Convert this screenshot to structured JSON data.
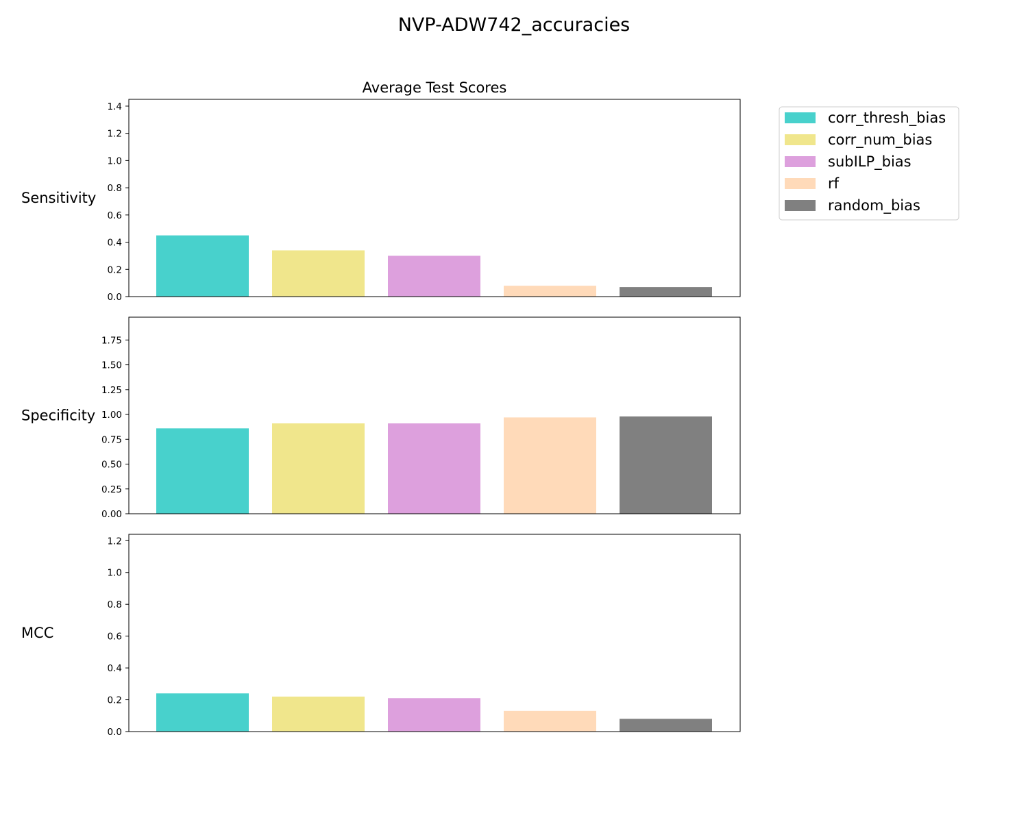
{
  "figure": {
    "title": "NVP-ADW742_accuracies",
    "subtitle": "Average Test Scores"
  },
  "legend": {
    "placement": "right-top",
    "entries": [
      {
        "label": "corr_thresh_bias",
        "color": "#48d1cc"
      },
      {
        "label": "corr_num_bias",
        "color": "#f0e68c"
      },
      {
        "label": "subILP_bias",
        "color": "#dda0dd"
      },
      {
        "label": "rf",
        "color": "#ffdab9"
      },
      {
        "label": "random_bias",
        "color": "#808080"
      }
    ]
  },
  "chart_data": [
    {
      "type": "bar",
      "title": "Average Test Scores",
      "ylabel": "Sensitivity",
      "categories": [
        "corr_thresh_bias",
        "corr_num_bias",
        "subILP_bias",
        "rf",
        "random_bias"
      ],
      "values": [
        0.45,
        0.34,
        0.3,
        0.08,
        0.07
      ],
      "colors": [
        "#48d1cc",
        "#f0e68c",
        "#dda0dd",
        "#ffdab9",
        "#808080"
      ],
      "ylim": [
        0,
        1.45
      ],
      "yticks": [
        0.0,
        0.2,
        0.4,
        0.6,
        0.8,
        1.0,
        1.2,
        1.4
      ],
      "tick_labels": [
        "0.0",
        "0.2",
        "0.4",
        "0.6",
        "0.8",
        "1.0",
        "1.2",
        "1.4"
      ],
      "grid": false
    },
    {
      "type": "bar",
      "title": "",
      "ylabel": "Specificity",
      "categories": [
        "corr_thresh_bias",
        "corr_num_bias",
        "subILP_bias",
        "rf",
        "random_bias"
      ],
      "values": [
        0.86,
        0.91,
        0.91,
        0.97,
        0.98
      ],
      "colors": [
        "#48d1cc",
        "#f0e68c",
        "#dda0dd",
        "#ffdab9",
        "#808080"
      ],
      "ylim": [
        0,
        1.98
      ],
      "yticks": [
        0.0,
        0.25,
        0.5,
        0.75,
        1.0,
        1.25,
        1.5,
        1.75
      ],
      "tick_labels": [
        "0.00",
        "0.25",
        "0.50",
        "0.75",
        "1.00",
        "1.25",
        "1.50",
        "1.75"
      ],
      "grid": false
    },
    {
      "type": "bar",
      "title": "",
      "ylabel": "MCC",
      "categories": [
        "corr_thresh_bias",
        "corr_num_bias",
        "subILP_bias",
        "rf",
        "random_bias"
      ],
      "values": [
        0.24,
        0.22,
        0.21,
        0.13,
        0.08
      ],
      "colors": [
        "#48d1cc",
        "#f0e68c",
        "#dda0dd",
        "#ffdab9",
        "#808080"
      ],
      "ylim": [
        0,
        1.24
      ],
      "yticks": [
        0.0,
        0.2,
        0.4,
        0.6,
        0.8,
        1.0,
        1.2
      ],
      "tick_labels": [
        "0.0",
        "0.2",
        "0.4",
        "0.6",
        "0.8",
        "1.0",
        "1.2"
      ],
      "grid": false
    }
  ]
}
